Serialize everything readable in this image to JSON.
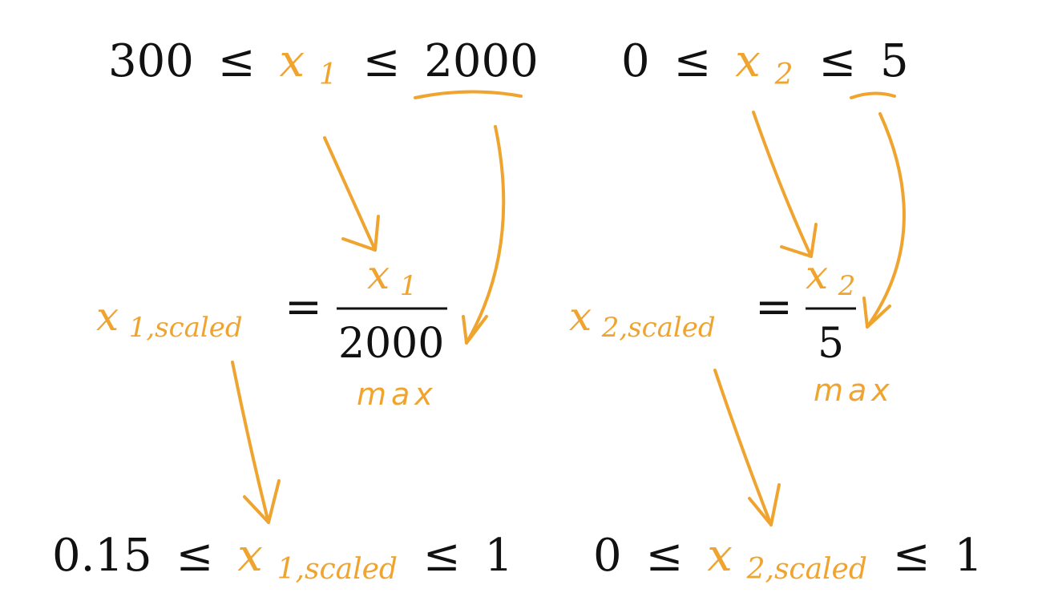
{
  "colors": {
    "text": "#111111",
    "accent": "#f0a430"
  },
  "range_x1": {
    "lower": "300",
    "leq_1": "≤",
    "var": "x",
    "sub": "1",
    "leq_2": "≤",
    "upper": "2000"
  },
  "range_x2": {
    "lower": "0",
    "leq_1": "≤",
    "var": "x",
    "sub": "2",
    "leq_2": "≤",
    "upper": "5"
  },
  "scale_x1": {
    "lhs_var": "x",
    "lhs_sub": "1,scaled",
    "equals": "=",
    "num_var": "x",
    "num_sub": "1",
    "denominator": "2000",
    "note": "max"
  },
  "scale_x2": {
    "lhs_var": "x",
    "lhs_sub": "2,scaled",
    "equals": "=",
    "num_var": "x",
    "num_sub": "2",
    "denominator": "5",
    "note": "max"
  },
  "result_x1": {
    "lower": "0.15",
    "leq_1": "≤",
    "var": "x",
    "sub": "1,scaled",
    "leq_2": "≤",
    "upper": "1"
  },
  "result_x2": {
    "lower": "0",
    "leq_1": "≤",
    "var": "x",
    "sub": "2,scaled",
    "leq_2": "≤",
    "upper": "1"
  }
}
